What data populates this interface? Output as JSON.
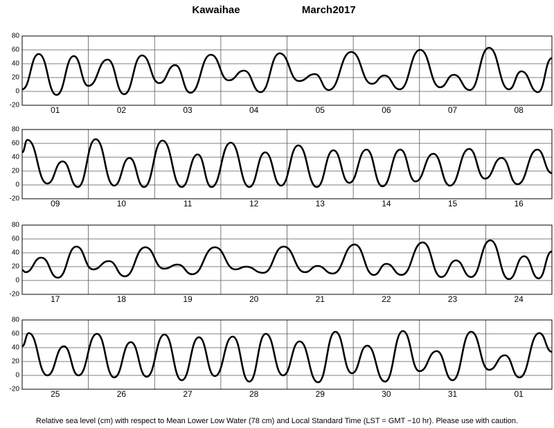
{
  "title": {
    "location": "Kawaihae",
    "month": "March",
    "year": "2017"
  },
  "footer": "Relative sea level (cm) with respect to Mean Lower Low Water (78 cm) and Local Standard Time (LST = GMT −10 hr). Please use with caution.",
  "chart_data": [
    {
      "type": "line",
      "categories": [
        "01",
        "02",
        "03",
        "04",
        "05",
        "06",
        "07",
        "08"
      ],
      "xlim": [
        0,
        8
      ],
      "ylim": [
        -20,
        80
      ],
      "yticks": [
        -20,
        0,
        20,
        40,
        60,
        80
      ],
      "x": [
        0,
        0.25,
        0.52,
        0.78,
        1.0,
        1.29,
        1.54,
        1.81,
        2.07,
        2.31,
        2.54,
        2.85,
        3.12,
        3.35,
        3.6,
        3.89,
        4.18,
        4.42,
        4.63,
        4.97,
        5.28,
        5.47,
        5.7,
        6.01,
        6.31,
        6.52,
        6.76,
        7.05,
        7.35,
        7.54,
        7.79,
        8.0
      ],
      "values": [
        3,
        54,
        -5,
        51,
        8,
        46,
        -4,
        52,
        12,
        38,
        -2,
        53,
        16,
        30,
        -1,
        55,
        15,
        25,
        2,
        57,
        11,
        23,
        3,
        60,
        6,
        24,
        2,
        63,
        3,
        29,
        -1,
        48
      ]
    },
    {
      "type": "line",
      "categories": [
        "09",
        "10",
        "11",
        "12",
        "13",
        "14",
        "15",
        "16"
      ],
      "xlim": [
        0,
        8
      ],
      "ylim": [
        -20,
        80
      ],
      "yticks": [
        -20,
        0,
        20,
        40,
        60,
        80
      ],
      "x": [
        0,
        0.08,
        0.38,
        0.61,
        0.84,
        1.11,
        1.39,
        1.62,
        1.84,
        2.12,
        2.41,
        2.65,
        2.86,
        3.15,
        3.43,
        3.67,
        3.91,
        4.17,
        4.45,
        4.7,
        4.94,
        5.2,
        5.44,
        5.71,
        5.94,
        6.21,
        6.46,
        6.75,
        6.99,
        7.24,
        7.48,
        7.78,
        8.0
      ],
      "values": [
        47,
        65,
        2,
        34,
        -3,
        66,
        -1,
        39,
        -3,
        64,
        -3,
        44,
        -3,
        61,
        -3,
        47,
        -1,
        57,
        -3,
        50,
        3,
        51,
        -2,
        51,
        5,
        45,
        -1,
        52,
        9,
        39,
        1,
        51,
        17
      ]
    },
    {
      "type": "line",
      "categories": [
        "17",
        "18",
        "19",
        "20",
        "21",
        "22",
        "23",
        "24"
      ],
      "xlim": [
        0,
        8
      ],
      "ylim": [
        -20,
        80
      ],
      "yticks": [
        -20,
        0,
        20,
        40,
        60,
        80
      ],
      "x": [
        0,
        0.05,
        0.29,
        0.54,
        0.82,
        1.07,
        1.31,
        1.55,
        1.86,
        2.14,
        2.35,
        2.57,
        2.91,
        3.22,
        3.38,
        3.64,
        3.95,
        4.27,
        4.46,
        4.69,
        5.02,
        5.31,
        5.5,
        5.73,
        6.05,
        6.33,
        6.55,
        6.78,
        7.07,
        7.35,
        7.58,
        7.8,
        8.0
      ],
      "values": [
        15,
        12,
        33,
        4,
        49,
        16,
        28,
        6,
        48,
        17,
        23,
        9,
        48,
        16,
        20,
        11,
        49,
        12,
        21,
        10,
        52,
        8,
        24,
        8,
        55,
        5,
        29,
        5,
        58,
        2,
        35,
        3,
        42
      ]
    },
    {
      "type": "line",
      "categories": [
        "25",
        "26",
        "27",
        "28",
        "29",
        "30",
        "31",
        "01"
      ],
      "xlim": [
        0,
        8
      ],
      "ylim": [
        -20,
        80
      ],
      "yticks": [
        -20,
        0,
        20,
        40,
        60,
        80
      ],
      "x": [
        0,
        0.1,
        0.38,
        0.63,
        0.85,
        1.13,
        1.39,
        1.64,
        1.88,
        2.15,
        2.41,
        2.67,
        2.91,
        3.18,
        3.43,
        3.68,
        3.94,
        4.19,
        4.47,
        4.73,
        4.98,
        5.21,
        5.48,
        5.75,
        6.0,
        6.26,
        6.5,
        6.78,
        7.05,
        7.29,
        7.51,
        7.81,
        8.0
      ],
      "values": [
        42,
        61,
        0,
        42,
        0,
        60,
        -3,
        48,
        -2,
        59,
        -7,
        55,
        -1,
        56,
        -9,
        60,
        0,
        49,
        -10,
        63,
        3,
        43,
        -9,
        64,
        6,
        35,
        -7,
        63,
        8,
        29,
        -3,
        61,
        34
      ]
    }
  ]
}
